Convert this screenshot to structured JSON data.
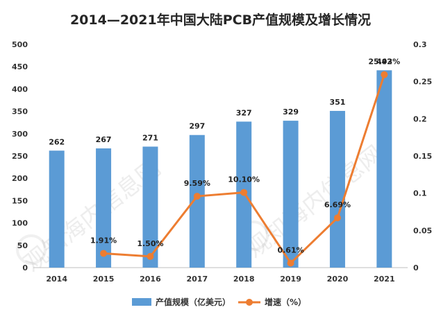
{
  "chart_data": {
    "type": "bar",
    "title": "2014—2021年中国大陆PCB产值规模及增长情况",
    "categories": [
      "2014",
      "2015",
      "2016",
      "2017",
      "2018",
      "2019",
      "2020",
      "2021"
    ],
    "series": [
      {
        "name": "产值规模（亿美元）",
        "type": "bar",
        "axis": "left",
        "color": "#5B9BD5",
        "values": [
          262,
          267,
          271,
          297,
          327,
          329,
          351,
          442
        ],
        "labels": [
          "262",
          "267",
          "271",
          "297",
          "327",
          "329",
          "351",
          "442"
        ]
      },
      {
        "name": "增速（%）",
        "type": "line",
        "axis": "right",
        "color": "#ED7D31",
        "values": [
          null,
          0.0191,
          0.015,
          0.0959,
          0.101,
          0.0061,
          0.0669,
          0.2593
        ],
        "labels": [
          "",
          "1.91%",
          "1.50%",
          "9.59%",
          "10.10%",
          "0.61%",
          "6.69%",
          "25.93%"
        ]
      }
    ],
    "y_left": {
      "min": 0,
      "max": 500,
      "ticks": [
        0,
        50,
        100,
        150,
        200,
        250,
        300,
        350,
        400,
        450,
        500
      ]
    },
    "y_right": {
      "min": 0,
      "max": 0.3,
      "ticks": [
        0,
        0.05,
        0.1,
        0.15,
        0.2,
        0.25,
        0.3
      ],
      "tick_labels": [
        "0",
        "0.05",
        "0.1",
        "0.15",
        "0.2",
        "0.25",
        "0.3"
      ]
    },
    "grid": false,
    "legend_position": "bottom",
    "watermark": "观知海内信息网"
  }
}
